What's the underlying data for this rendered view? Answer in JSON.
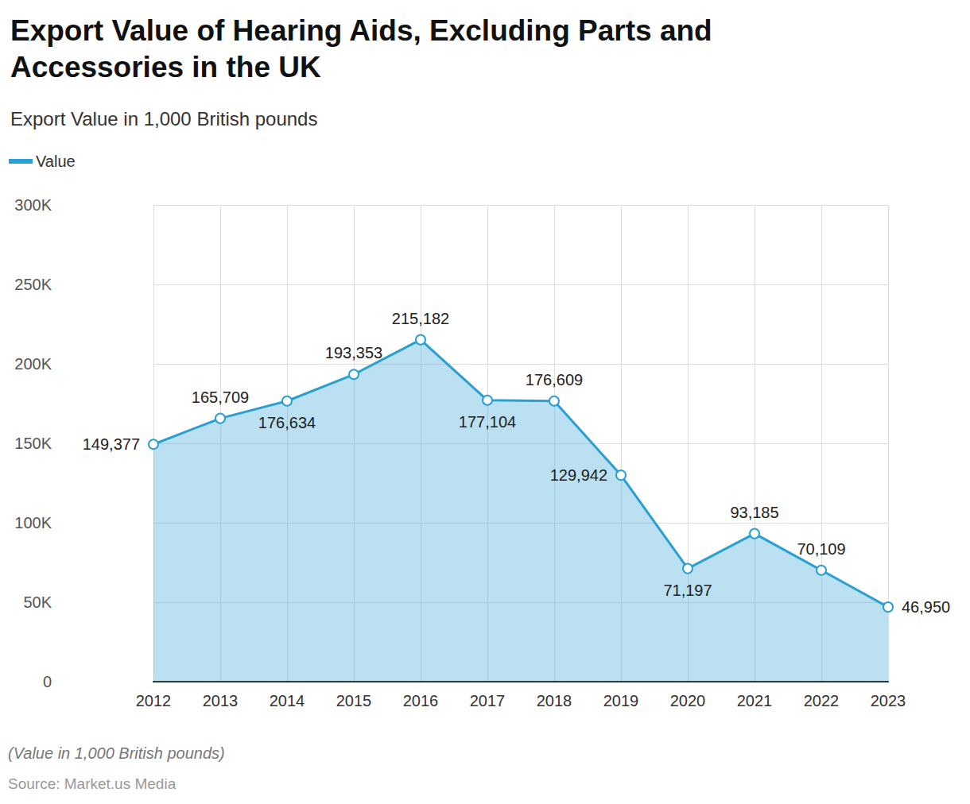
{
  "chart_data": {
    "type": "area",
    "title": "Export Value of Hearing Aids, Excluding Parts and Accessories in the UK",
    "subtitle": "Export Value in 1,000 British pounds",
    "caption": "(Value in 1,000 British pounds)",
    "source": "Source: Market.us Media",
    "categories": [
      "2012",
      "2013",
      "2014",
      "2015",
      "2016",
      "2017",
      "2018",
      "2019",
      "2020",
      "2021",
      "2022",
      "2023"
    ],
    "series": [
      {
        "name": "Value",
        "color": "#2a9fd2",
        "values": [
          149377,
          165709,
          176634,
          193353,
          215182,
          177104,
          176609,
          129942,
          71197,
          93185,
          70109,
          46950
        ],
        "value_labels": [
          "149,377",
          "165,709",
          "176,634",
          "193,353",
          "215,182",
          "177,104",
          "176,609",
          "129,942",
          "71,197",
          "93,185",
          "70,109",
          "46,950"
        ]
      }
    ],
    "ylim": [
      0,
      300000
    ],
    "yticks": [
      0,
      {
        "value": 50000,
        "label": "50K"
      },
      {
        "value": 100000,
        "label": "100K"
      },
      {
        "value": 150000,
        "label": "150K"
      },
      {
        "value": 200000,
        "label": "200K"
      },
      {
        "value": 250000,
        "label": "250K"
      },
      {
        "value": 300000,
        "label": "300K"
      }
    ],
    "grid": true,
    "legend": "top-left",
    "data_labels": true,
    "marker": "circle"
  }
}
